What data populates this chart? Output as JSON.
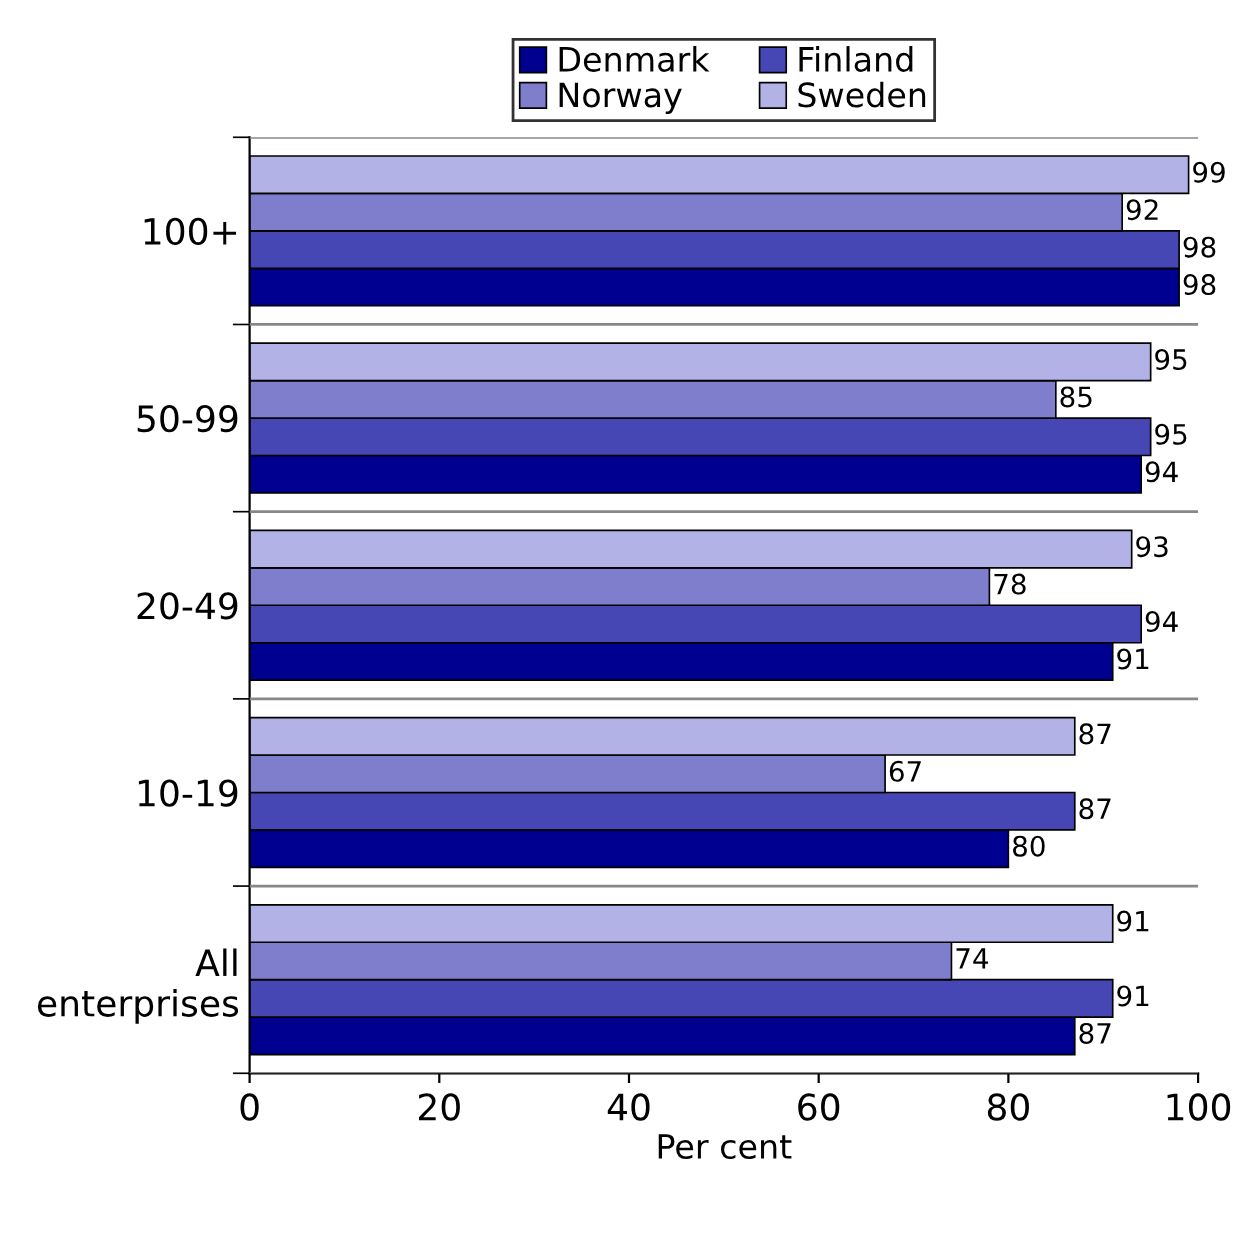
{
  "chart_data": {
    "type": "bar",
    "orientation": "horizontal",
    "xlabel": "Per cent",
    "categories": [
      "100+",
      "50-99",
      "20-49",
      "10-19",
      "All\nenterprises"
    ],
    "series": [
      {
        "name": "Denmark",
        "color": "#000090",
        "values": [
          98,
          94,
          91,
          80,
          87
        ]
      },
      {
        "name": "Finland",
        "color": "#4646b4",
        "values": [
          98,
          95,
          94,
          87,
          91
        ]
      },
      {
        "name": "Norway",
        "color": "#7e7ecc",
        "values": [
          92,
          85,
          78,
          67,
          74
        ]
      },
      {
        "name": "Sweden",
        "color": "#b2b2e6",
        "values": [
          99,
          95,
          93,
          87,
          91
        ]
      }
    ],
    "xlim": [
      0,
      100
    ],
    "xticks": [
      0,
      20,
      40,
      60,
      80,
      100
    ],
    "grid": "y",
    "legend": "top",
    "data_labels": true
  }
}
